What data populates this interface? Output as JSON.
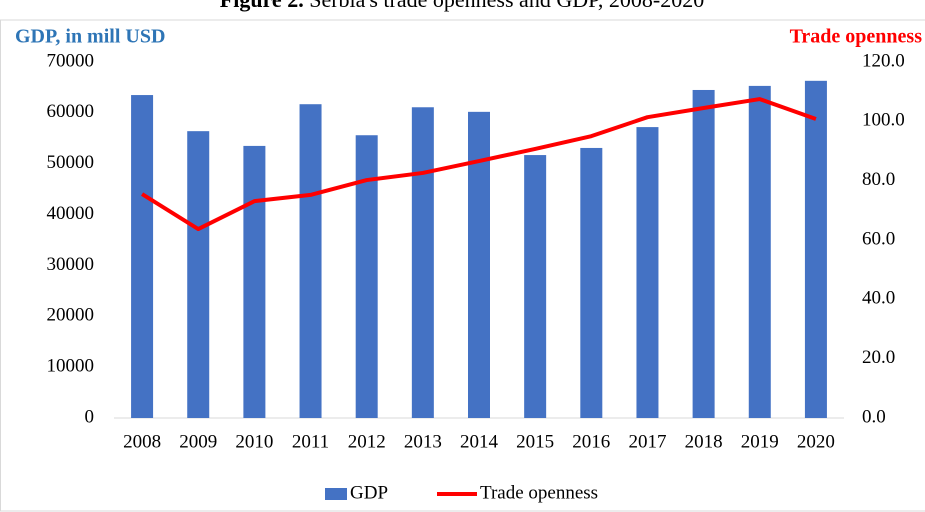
{
  "chart_data": {
    "type": "bar-line",
    "title_label": "Figure 2.",
    "title": "Serbia's trade openness and GDP, 2008-2020",
    "y_label": "GDP, in mill USD",
    "y2_label": "Trade openness",
    "categories": [
      "2008",
      "2009",
      "2010",
      "2011",
      "2012",
      "2013",
      "2014",
      "2015",
      "2016",
      "2017",
      "2018",
      "2019",
      "2020"
    ],
    "series": [
      {
        "name": "GDP",
        "type": "bar",
        "color": "#4472c4",
        "values": [
          63500,
          56400,
          53500,
          61700,
          55600,
          61100,
          60200,
          51700,
          53100,
          57200,
          64500,
          65300,
          66300
        ]
      },
      {
        "name": "Trade openness",
        "type": "line",
        "axis": "y2",
        "color": "#ff0000",
        "values": [
          75.5,
          63.7,
          73.1,
          75.2,
          80.2,
          82.6,
          86.6,
          90.7,
          95.0,
          101.4,
          104.5,
          107.5,
          100.8
        ]
      }
    ],
    "ylim": [
      0,
      70000
    ],
    "yticks": [
      0,
      10000,
      20000,
      30000,
      40000,
      50000,
      60000,
      70000
    ],
    "y2lim": [
      0,
      120
    ],
    "y2ticks": [
      {
        "value": 0,
        "label": "0.0"
      },
      {
        "value": 20,
        "label": "20.0"
      },
      {
        "value": 40,
        "label": "40.0"
      },
      {
        "value": 60,
        "label": "60.0"
      },
      {
        "value": 80,
        "label": "80.0"
      },
      {
        "value": 100,
        "label": "100.0"
      },
      {
        "value": 120,
        "label": "120.0"
      }
    ],
    "grid": false,
    "legend": "bottom"
  }
}
